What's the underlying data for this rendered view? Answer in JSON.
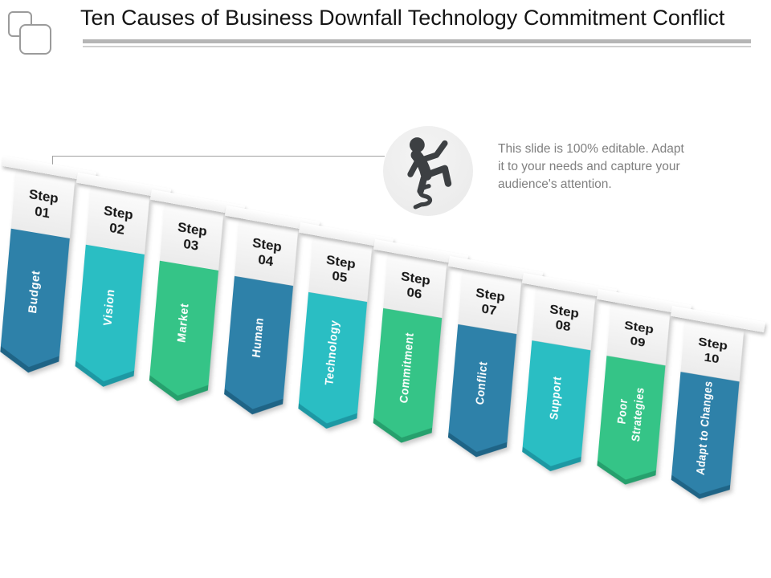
{
  "title": "Ten Causes of Business Downfall Technology Commitment Conflict",
  "note": "This slide is 100% editable. Adapt it to your needs and capture your audience's attention.",
  "icon": {
    "name": "slipping-person-money-icon",
    "color": "#3d4043",
    "circle_color": "#eeeeee"
  },
  "palette": {
    "blue": "#2E81A9",
    "blue_dark": "#1F6486",
    "cyan": "#2ABEC3",
    "cyan_dark": "#1D98A3",
    "green": "#35C487",
    "green_dark": "#26A06D"
  },
  "steps": [
    {
      "step_word": "Step",
      "number": "01",
      "label": "Budget",
      "color": "#2E81A9",
      "dark": "#1F6486"
    },
    {
      "step_word": "Step",
      "number": "02",
      "label": "Vision",
      "color": "#2ABEC3",
      "dark": "#1D98A3"
    },
    {
      "step_word": "Step",
      "number": "03",
      "label": "Market",
      "color": "#35C487",
      "dark": "#26A06D"
    },
    {
      "step_word": "Step",
      "number": "04",
      "label": "Human",
      "color": "#2E81A9",
      "dark": "#1F6486"
    },
    {
      "step_word": "Step",
      "number": "05",
      "label": "Technology",
      "color": "#2ABEC3",
      "dark": "#1D98A3"
    },
    {
      "step_word": "Step",
      "number": "06",
      "label": "Commitment",
      "color": "#35C487",
      "dark": "#26A06D"
    },
    {
      "step_word": "Step",
      "number": "07",
      "label": "Conflict",
      "color": "#2E81A9",
      "dark": "#1F6486"
    },
    {
      "step_word": "Step",
      "number": "08",
      "label": "Support",
      "color": "#2ABEC3",
      "dark": "#1D98A3"
    },
    {
      "step_word": "Step",
      "number": "09",
      "label": "Poor\nStrategies",
      "color": "#35C487",
      "dark": "#26A06D"
    },
    {
      "step_word": "Step",
      "number": "10",
      "label": "Adapt to Changes",
      "color": "#2E81A9",
      "dark": "#1F6486"
    }
  ]
}
